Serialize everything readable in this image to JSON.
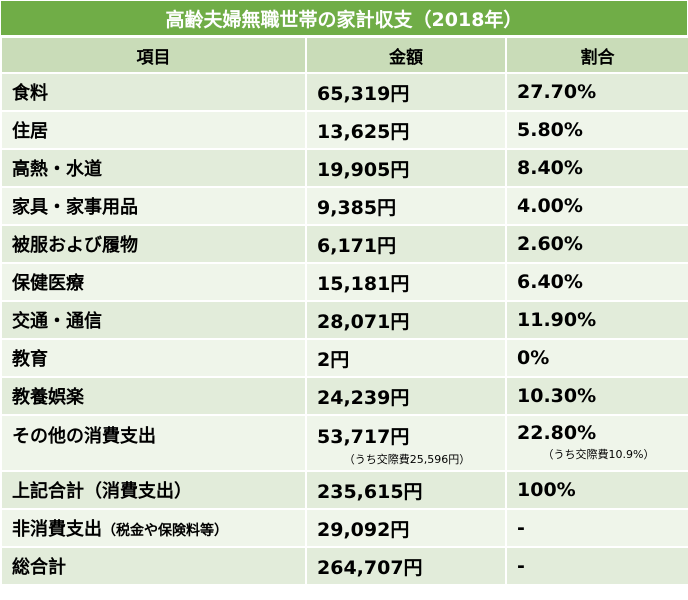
{
  "title": "高齢夫婦無職世帯の家計収支（2018年）",
  "headers": {
    "item": "項目",
    "amount": "金額",
    "ratio": "割合"
  },
  "rows": [
    {
      "item": "食料",
      "amount": "65,319円",
      "ratio": "27.70%"
    },
    {
      "item": "住居",
      "amount": "13,625円",
      "ratio": "5.80%"
    },
    {
      "item": "高熱・水道",
      "amount": "19,905円",
      "ratio": "8.40%"
    },
    {
      "item": "家具・家事用品",
      "amount": "9,385円",
      "ratio": "4.00%"
    },
    {
      "item": "被服および履物",
      "amount": "6,171円",
      "ratio": "2.60%"
    },
    {
      "item": "保健医療",
      "amount": "15,181円",
      "ratio": "6.40%"
    },
    {
      "item": "交通・通信",
      "amount": "28,071円",
      "ratio": "11.90%"
    },
    {
      "item": "教育",
      "amount": "2円",
      "ratio": "0%"
    },
    {
      "item": "教養娯楽",
      "amount": "24,239円",
      "ratio": "10.30%"
    },
    {
      "item": "その他の消費支出",
      "amount": "53,717円",
      "amount_note": "（うち交際費25,596円）",
      "ratio": "22.80%",
      "ratio_note": "（うち交際費10.9%）"
    },
    {
      "item": "上記合計（消費支出）",
      "amount": "235,615円",
      "ratio": "100%"
    },
    {
      "item": "非消費支出",
      "item_note": "（税金や保険料等）",
      "amount": "29,092円",
      "ratio": "-"
    },
    {
      "item": "総合計",
      "amount": "264,707円",
      "ratio": "-"
    }
  ]
}
